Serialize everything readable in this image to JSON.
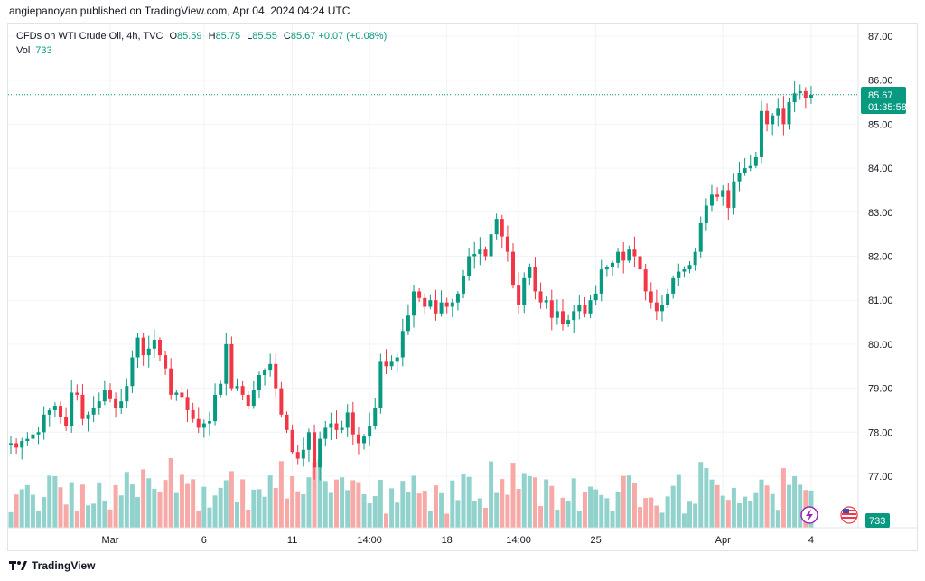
{
  "header": {
    "published": "angiepanoyan published on TradingView.com, Apr 04, 2024 04:24 UTC"
  },
  "legend": {
    "symbol": "CFDs on WTI Crude Oil, 4h, TVC",
    "o_label": "O",
    "o_value": "85.59",
    "h_label": "H",
    "h_value": "85.75",
    "l_label": "L",
    "l_value": "85.55",
    "c_label": "C",
    "c_value": "85.67",
    "change": "+0.07 (+0.08%)",
    "vol_label": "Vol",
    "vol_value": "733"
  },
  "price_tag": {
    "price": "85.67",
    "countdown": "01:35:58"
  },
  "volume_tag": "733",
  "footer": {
    "brand": "TradingView",
    "logo_icon": "tradingview-logo-icon"
  },
  "colors": {
    "up": "#089981",
    "down": "#f23645",
    "up_vol": "#92d2cc",
    "down_vol": "#f7a9a7",
    "grid": "#f0f3fa"
  },
  "chart_data": {
    "type": "candlestick",
    "title": "CFDs on WTI Crude Oil, 4h, TVC",
    "ylim": [
      76.0,
      87.3
    ],
    "y_ticks": [
      77,
      78,
      79,
      80,
      81,
      82,
      83,
      84,
      85,
      86,
      87
    ],
    "y_tick_labels": [
      "77.00",
      "78.00",
      "79.00",
      "80.00",
      "81.00",
      "82.00",
      "83.00",
      "84.00",
      "85.00",
      "86.00",
      "87.00"
    ],
    "x_labels": [
      {
        "label": "Mar",
        "index": 18
      },
      {
        "label": "6",
        "index": 35
      },
      {
        "label": "11",
        "index": 51
      },
      {
        "label": "14:00",
        "index": 65
      },
      {
        "label": "18",
        "index": 79
      },
      {
        "label": "14:00",
        "index": 92
      },
      {
        "label": "25",
        "index": 106
      },
      {
        "label": "Apr",
        "index": 129
      },
      {
        "label": "4",
        "index": 145
      }
    ],
    "closes": [
      77.75,
      77.65,
      77.8,
      77.85,
      77.95,
      78.0,
      78.4,
      78.5,
      78.6,
      78.35,
      78.15,
      78.9,
      78.85,
      78.3,
      78.4,
      78.55,
      78.7,
      78.95,
      78.75,
      78.55,
      78.7,
      79.05,
      79.7,
      80.15,
      79.75,
      79.9,
      80.1,
      79.75,
      79.45,
      78.85,
      78.9,
      78.8,
      78.5,
      78.3,
      78.1,
      78.2,
      78.25,
      78.85,
      79.1,
      80.0,
      79.0,
      79.05,
      78.85,
      78.6,
      78.95,
      79.3,
      79.4,
      79.55,
      79.0,
      78.4,
      78.05,
      77.55,
      77.4,
      77.6,
      78.0,
      77.2,
      77.85,
      78.1,
      78.2,
      78.05,
      78.1,
      78.45,
      77.95,
      77.75,
      77.9,
      78.15,
      78.55,
      79.6,
      79.5,
      79.6,
      79.7,
      80.3,
      80.65,
      81.2,
      81.05,
      80.85,
      81.0,
      80.7,
      80.95,
      80.85,
      80.95,
      81.15,
      81.55,
      82.0,
      82.05,
      82.15,
      82.0,
      82.5,
      82.85,
      82.45,
      82.1,
      81.35,
      80.9,
      81.5,
      81.75,
      81.2,
      80.95,
      81.0,
      80.6,
      80.75,
      80.45,
      80.55,
      80.75,
      80.9,
      80.7,
      81.0,
      81.15,
      81.7,
      81.75,
      81.85,
      82.1,
      81.9,
      82.15,
      82.0,
      81.7,
      81.2,
      80.95,
      80.75,
      80.9,
      81.15,
      81.5,
      81.65,
      81.7,
      81.8,
      82.1,
      82.75,
      83.15,
      83.4,
      83.35,
      83.5,
      83.1,
      83.7,
      83.9,
      84.0,
      84.05,
      84.25,
      85.3,
      85.0,
      85.2,
      85.35,
      85.0,
      85.5,
      85.7,
      85.75,
      85.6,
      85.67
    ]
  }
}
